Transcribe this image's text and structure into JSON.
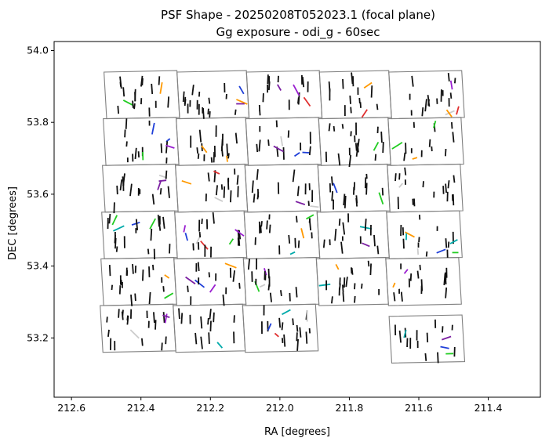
{
  "chart_data": {
    "type": "scatter",
    "title": "PSF Shape - 20250208T052023.1 (focal plane)",
    "subtitle": "Gg exposure - odi_g - 60sec",
    "xlabel": "RA [degrees]",
    "ylabel": "DEC [degrees]",
    "xlim": [
      212.65,
      211.25
    ],
    "ylim": [
      53.035,
      54.025
    ],
    "x_ticks": [
      212.6,
      212.4,
      212.2,
      212.0,
      211.8,
      211.6,
      211.4
    ],
    "x_tick_labels": [
      "212.6",
      "212.4",
      "212.2",
      "212.0",
      "211.8",
      "211.6",
      "211.4"
    ],
    "y_ticks": [
      53.2,
      53.4,
      53.6,
      53.8,
      54.0
    ],
    "y_tick_labels": [
      "53.2",
      "53.4",
      "53.6",
      "53.8",
      "54.0"
    ],
    "grid": false,
    "cells": [
      {
        "row": 0,
        "col": 0,
        "ra": [
          212.48,
          212.27
        ],
        "dec": [
          53.81,
          53.94
        ]
      },
      {
        "row": 0,
        "col": 1,
        "ra": [
          212.27,
          212.07
        ],
        "dec": [
          53.81,
          53.94
        ]
      },
      {
        "row": 0,
        "col": 2,
        "ra": [
          212.07,
          211.86
        ],
        "dec": [
          53.81,
          53.94
        ]
      },
      {
        "row": 0,
        "col": 3,
        "ra": [
          211.86,
          211.66
        ],
        "dec": [
          53.81,
          53.94
        ]
      },
      {
        "row": 0,
        "col": 4,
        "ra": [
          211.66,
          211.45
        ],
        "dec": [
          53.81,
          53.94
        ]
      },
      {
        "row": 1,
        "col": 0,
        "ra": [
          212.49,
          212.28
        ],
        "dec": [
          53.68,
          53.81
        ]
      },
      {
        "row": 1,
        "col": 1,
        "ra": [
          212.28,
          212.08
        ],
        "dec": [
          53.68,
          53.81
        ]
      },
      {
        "row": 1,
        "col": 2,
        "ra": [
          212.08,
          211.87
        ],
        "dec": [
          53.68,
          53.81
        ]
      },
      {
        "row": 1,
        "col": 3,
        "ra": [
          211.87,
          211.67
        ],
        "dec": [
          53.68,
          53.81
        ]
      },
      {
        "row": 1,
        "col": 4,
        "ra": [
          211.67,
          211.46
        ],
        "dec": [
          53.68,
          53.81
        ]
      },
      {
        "row": 2,
        "col": 0,
        "ra": [
          212.5,
          212.29
        ],
        "dec": [
          53.55,
          53.68
        ]
      },
      {
        "row": 2,
        "col": 1,
        "ra": [
          212.29,
          212.09
        ],
        "dec": [
          53.55,
          53.68
        ]
      },
      {
        "row": 2,
        "col": 2,
        "ra": [
          212.09,
          211.88
        ],
        "dec": [
          53.55,
          53.68
        ]
      },
      {
        "row": 2,
        "col": 3,
        "ra": [
          211.88,
          211.68
        ],
        "dec": [
          53.55,
          53.68
        ]
      },
      {
        "row": 2,
        "col": 4,
        "ra": [
          211.68,
          211.47
        ],
        "dec": [
          53.55,
          53.68
        ]
      },
      {
        "row": 3,
        "col": 0,
        "ra": [
          212.51,
          212.3
        ],
        "dec": [
          53.42,
          53.55
        ]
      },
      {
        "row": 3,
        "col": 1,
        "ra": [
          212.3,
          212.1
        ],
        "dec": [
          53.42,
          53.55
        ]
      },
      {
        "row": 3,
        "col": 2,
        "ra": [
          212.1,
          211.89
        ],
        "dec": [
          53.42,
          53.55
        ]
      },
      {
        "row": 3,
        "col": 3,
        "ra": [
          211.89,
          211.69
        ],
        "dec": [
          53.42,
          53.55
        ]
      },
      {
        "row": 3,
        "col": 4,
        "ra": [
          211.69,
          211.48
        ],
        "dec": [
          53.42,
          53.55
        ]
      },
      {
        "row": 4,
        "col": 0,
        "ra": [
          212.52,
          212.31
        ],
        "dec": [
          53.29,
          53.42
        ]
      },
      {
        "row": 4,
        "col": 1,
        "ra": [
          212.31,
          212.11
        ],
        "dec": [
          53.29,
          53.42
        ]
      },
      {
        "row": 4,
        "col": 2,
        "ra": [
          212.11,
          211.9
        ],
        "dec": [
          53.29,
          53.42
        ]
      },
      {
        "row": 4,
        "col": 3,
        "ra": [
          211.9,
          211.7
        ],
        "dec": [
          53.29,
          53.42
        ]
      },
      {
        "row": 4,
        "col": 4,
        "ra": [
          211.7,
          211.49
        ],
        "dec": [
          53.29,
          53.42
        ]
      },
      {
        "row": 5,
        "col": 0,
        "ra": [
          212.53,
          212.32
        ],
        "dec": [
          53.16,
          53.29
        ]
      },
      {
        "row": 5,
        "col": 1,
        "ra": [
          212.32,
          212.12
        ],
        "dec": [
          53.16,
          53.29
        ]
      },
      {
        "row": 5,
        "col": 2,
        "ra": [
          212.12,
          211.91
        ],
        "dec": [
          53.16,
          53.29
        ]
      },
      {
        "row": 5,
        "col": 4,
        "ra": [
          211.7,
          211.49
        ],
        "dec": [
          53.13,
          53.26
        ]
      }
    ],
    "colors": {
      "frame": "#808080",
      "stick_default": "#111111",
      "stick_palette": [
        "#7b1fa2",
        "#1f3fd8",
        "#00aaaa",
        "#22cc22",
        "#ff9900",
        "#cccccc",
        "#e03030",
        "#9a1fd0"
      ]
    }
  }
}
